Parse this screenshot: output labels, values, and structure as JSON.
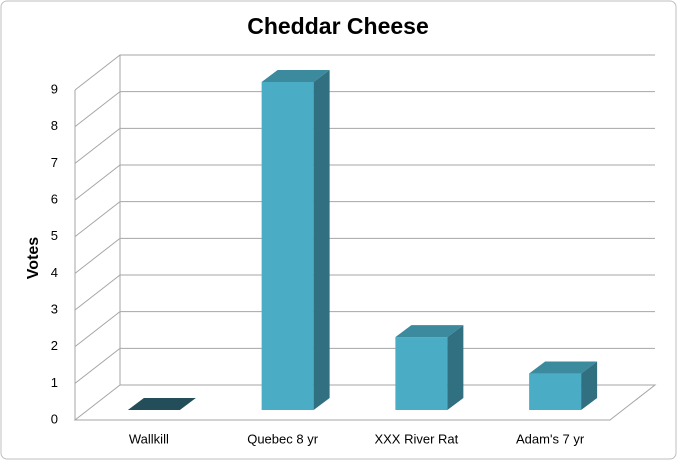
{
  "chart_data": {
    "type": "bar3d",
    "title": "Cheddar Cheese",
    "y_label": "Votes",
    "categories": [
      "Wallkill",
      "Quebec 8 yr",
      "XXX River Rat",
      "Adam's 7 yr"
    ],
    "values": [
      0,
      9,
      2,
      1
    ],
    "color": "#4bacc6",
    "ylim": [
      0,
      9
    ],
    "yticks": [
      0,
      1,
      2,
      3,
      4,
      5,
      6,
      7,
      8,
      9
    ],
    "grid": true
  }
}
